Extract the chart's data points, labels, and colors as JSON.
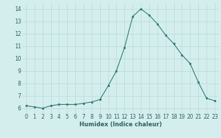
{
  "x": [
    0,
    1,
    2,
    3,
    4,
    5,
    6,
    7,
    8,
    9,
    10,
    11,
    12,
    13,
    14,
    15,
    16,
    17,
    18,
    19,
    20,
    21,
    22,
    23
  ],
  "y": [
    6.2,
    6.1,
    6.0,
    6.2,
    6.3,
    6.3,
    6.3,
    6.4,
    6.5,
    6.7,
    7.8,
    9.0,
    10.9,
    13.4,
    14.0,
    13.5,
    12.8,
    11.9,
    11.2,
    10.3,
    9.6,
    8.1,
    6.8,
    6.6
  ],
  "line_color": "#2d7a6e",
  "marker": "o",
  "marker_size": 1.8,
  "bg_color": "#d4eeee",
  "grid_color": "#b8d8d8",
  "xlabel": "Humidex (Indice chaleur)",
  "xlabel_fontsize": 6.0,
  "xlabel_color": "#2d6060",
  "tick_color": "#2d6060",
  "tick_fontsize": 5.5,
  "ylim": [
    5.6,
    14.5
  ],
  "xlim": [
    -0.5,
    23.5
  ],
  "yticks": [
    6,
    7,
    8,
    9,
    10,
    11,
    12,
    13,
    14
  ],
  "xticks": [
    0,
    1,
    2,
    3,
    4,
    5,
    6,
    7,
    8,
    9,
    10,
    11,
    12,
    13,
    14,
    15,
    16,
    17,
    18,
    19,
    20,
    21,
    22,
    23
  ]
}
